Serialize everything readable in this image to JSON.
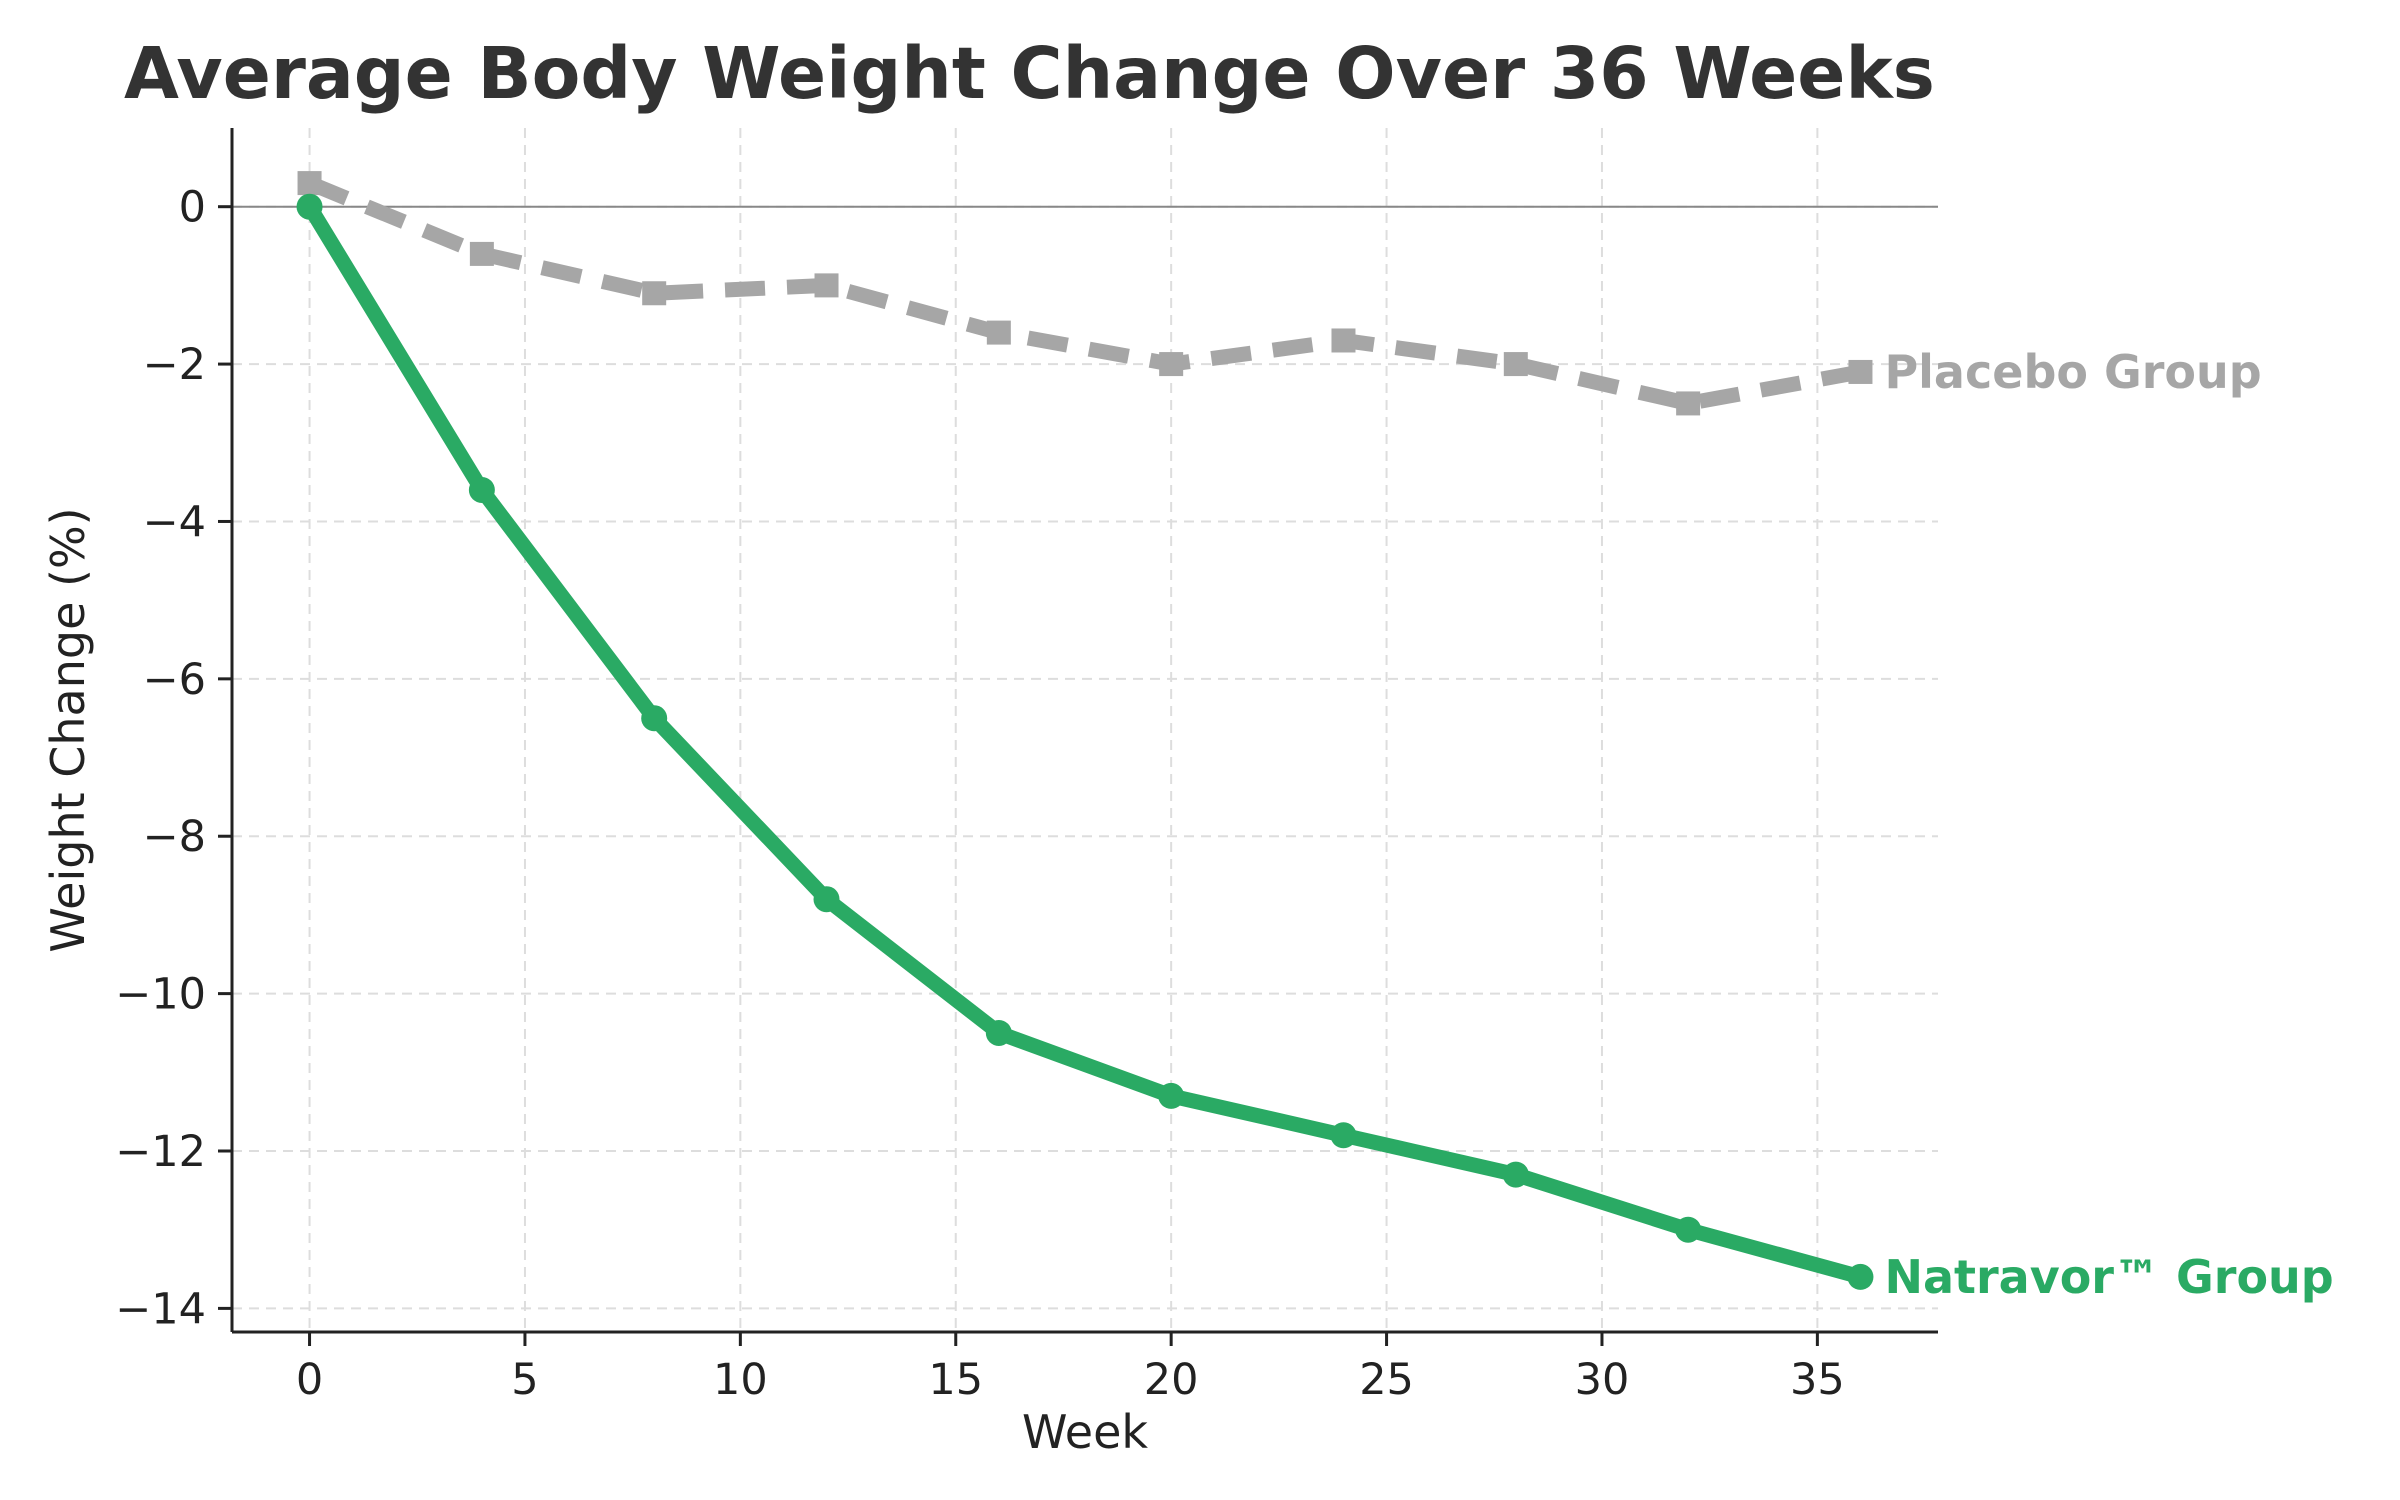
{
  "chart_data": {
    "type": "line",
    "title": "Average Body Weight Change Over 36 Weeks",
    "xlabel": "Week",
    "ylabel": "Weight Change (%)",
    "x": [
      0,
      4,
      8,
      12,
      16,
      20,
      24,
      28,
      32,
      36
    ],
    "xlim": [
      -1.8,
      37.8
    ],
    "ylim": [
      -14.3,
      1.0
    ],
    "xticks": [
      0,
      5,
      10,
      15,
      20,
      25,
      30,
      35
    ],
    "yticks": [
      0,
      -2,
      -4,
      -6,
      -8,
      -10,
      -12,
      -14
    ],
    "xtick_labels": [
      "0",
      "5",
      "10",
      "15",
      "20",
      "25",
      "30",
      "35"
    ],
    "ytick_labels": [
      "0",
      "−2",
      "−4",
      "−6",
      "−8",
      "−10",
      "−12",
      "−14"
    ],
    "grid": true,
    "zero_line": true,
    "series": [
      {
        "name": "Placebo Group",
        "values": [
          0.3,
          -0.6,
          -1.1,
          -1.0,
          -1.6,
          -2.0,
          -1.7,
          -2.0,
          -2.5,
          -2.1
        ],
        "color": "#a6a6a6",
        "line_style": "dashed",
        "marker": "square"
      },
      {
        "name": "Natravor™ Group",
        "values": [
          0.0,
          -3.6,
          -6.5,
          -8.8,
          -10.5,
          -11.3,
          -11.8,
          -12.3,
          -13.0,
          -13.6
        ],
        "color": "#2aaa64",
        "line_style": "solid",
        "marker": "circle"
      }
    ]
  }
}
